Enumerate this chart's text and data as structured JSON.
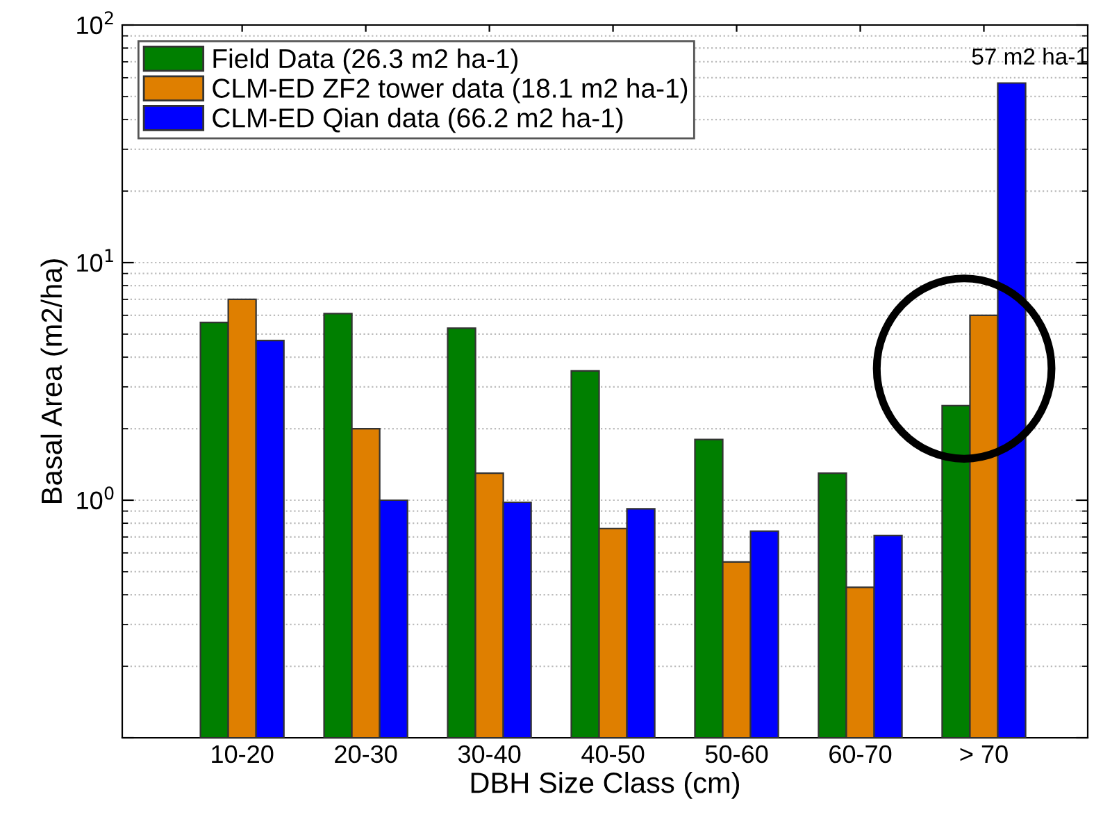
{
  "chart_data": {
    "type": "bar",
    "xlabel": "DBH Size Class (cm)",
    "ylabel": "Basal Area (m2/ha)",
    "categories": [
      "10-20",
      "20-30",
      "30-40",
      "40-50",
      "50-60",
      "60-70",
      "> 70"
    ],
    "series": [
      {
        "name": "Field Data (26.3 m2 ha-1)",
        "color": "#007f00",
        "values": [
          5.6,
          6.1,
          5.3,
          3.5,
          1.8,
          1.3,
          2.5
        ]
      },
      {
        "name": "CLM-ED ZF2 tower data (18.1 m2 ha-1)",
        "color": "#df7f00",
        "values": [
          7.0,
          2.0,
          1.3,
          0.76,
          0.55,
          0.43,
          6.0
        ]
      },
      {
        "name": "CLM-ED Qian data (66.2 m2 ha-1)",
        "color": "#0000ff",
        "values": [
          4.7,
          1.0,
          0.98,
          0.92,
          0.74,
          0.71,
          57
        ]
      }
    ],
    "log": "y",
    "ylim": [
      0.1,
      100
    ],
    "yticks": [
      {
        "value": 0.1,
        "label": null
      },
      {
        "value": 1,
        "label": "10$^{0}$"
      },
      {
        "value": 10,
        "label": "10$^{1}$"
      },
      {
        "value": 100,
        "label": "10$^{2}$"
      }
    ],
    "grid": "y",
    "line_style": "dotted",
    "legend": "top left",
    "annotations": [
      "57 m2 ha-1"
    ]
  }
}
